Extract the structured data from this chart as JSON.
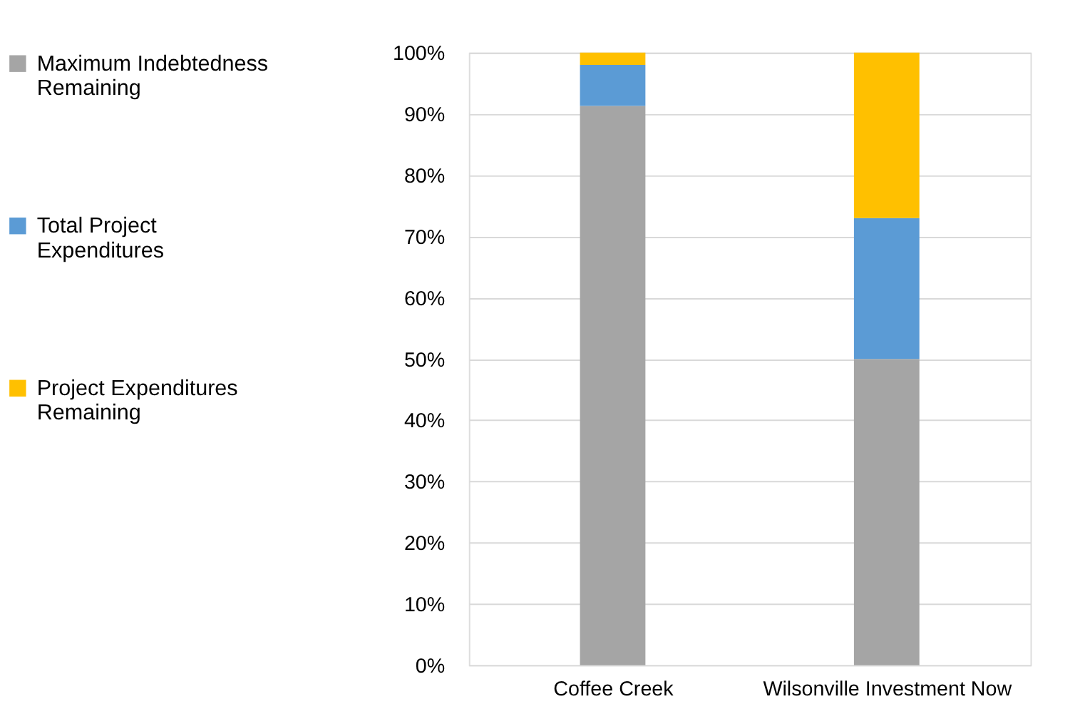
{
  "chart_data": {
    "type": "bar",
    "stacked": true,
    "categories": [
      "Coffee Creek",
      "Wilsonville Investment Now"
    ],
    "series": [
      {
        "name": "Maximum Indebtedness Remaining",
        "color": "#a5a5a5",
        "values": [
          91.3,
          50
        ]
      },
      {
        "name": "Total Project Expenditures",
        "color": "#5b9bd5",
        "values": [
          6.7,
          23
        ]
      },
      {
        "name": "Project Expenditures Remaining",
        "color": "#ffc000",
        "values": [
          2,
          27
        ]
      }
    ],
    "ylim": [
      0,
      100
    ],
    "yticks": [
      {
        "value": 0,
        "label": "0%"
      },
      {
        "value": 10,
        "label": "10%"
      },
      {
        "value": 20,
        "label": "20%"
      },
      {
        "value": 30,
        "label": "30%"
      },
      {
        "value": 40,
        "label": "40%"
      },
      {
        "value": 50,
        "label": "50%"
      },
      {
        "value": 60,
        "label": "60%"
      },
      {
        "value": 70,
        "label": "70%"
      },
      {
        "value": 80,
        "label": "80%"
      },
      {
        "value": 90,
        "label": "90%"
      },
      {
        "value": 100,
        "label": "100%"
      }
    ],
    "grid": "y",
    "legend": "left"
  }
}
